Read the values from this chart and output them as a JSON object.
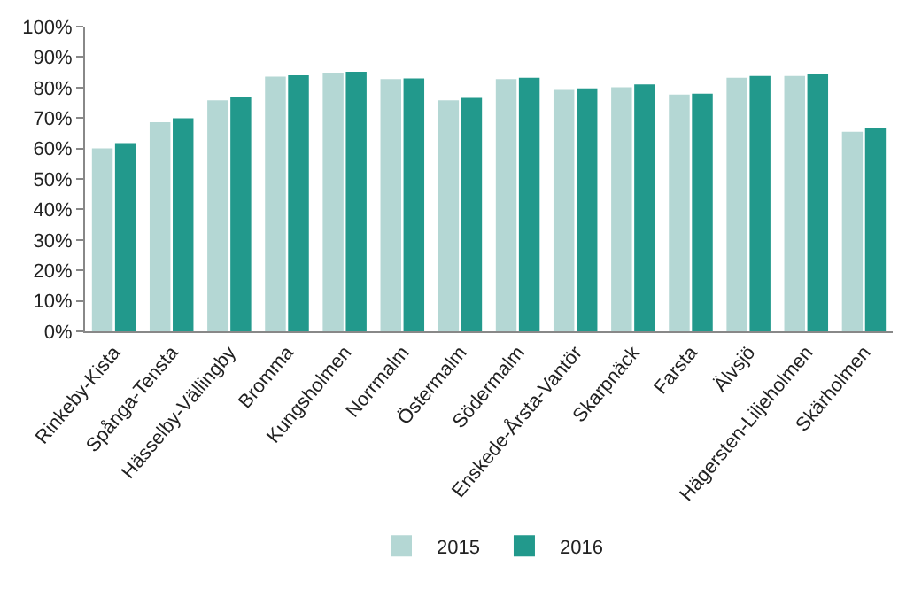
{
  "chart_data": {
    "type": "bar",
    "categories": [
      "Rinkeby-Kista",
      "Spånga-Tensta",
      "Hässelby-Vällingby",
      "Bromma",
      "Kungsholmen",
      "Norrmalm",
      "Östermalm",
      "Södermalm",
      "Enskede-Årsta-Vantör",
      "Skarpnäck",
      "Farsta",
      "Älvsjö",
      "Hägersten-Liljeholmen",
      "Skärholmen"
    ],
    "series": [
      {
        "name": "2015",
        "color": "#b4d7d4",
        "values": [
          60,
          68.6,
          75.8,
          83.6,
          84.9,
          82.8,
          75.8,
          82.8,
          79.2,
          80.1,
          77.7,
          83.2,
          83.8,
          65.5
        ]
      },
      {
        "name": "2016",
        "color": "#22998c",
        "values": [
          61.8,
          69.9,
          76.9,
          84,
          85.2,
          83,
          76.6,
          83.2,
          79.7,
          81,
          78,
          83.8,
          84.3,
          66.6
        ]
      }
    ],
    "ylim": [
      0,
      100
    ],
    "yticks": [
      {
        "value": 0,
        "label": "0%"
      },
      {
        "value": 10,
        "label": "10%"
      },
      {
        "value": 20,
        "label": "20%"
      },
      {
        "value": 30,
        "label": "30%"
      },
      {
        "value": 40,
        "label": "40%"
      },
      {
        "value": 50,
        "label": "50%"
      },
      {
        "value": 60,
        "label": "60%"
      },
      {
        "value": 70,
        "label": "70%"
      },
      {
        "value": 80,
        "label": "80%"
      },
      {
        "value": 90,
        "label": "90%"
      },
      {
        "value": 100,
        "label": "100%"
      }
    ],
    "legend": "bottom"
  }
}
